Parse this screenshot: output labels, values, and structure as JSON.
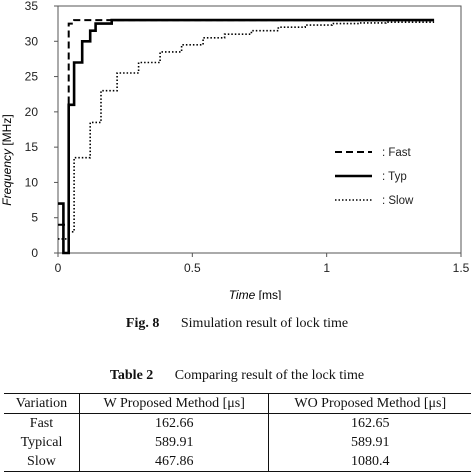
{
  "chart_data": {
    "type": "line",
    "xlabel_italic": "Time",
    "xlabel_unit": "[ms]",
    "ylabel_italic": "Frequency",
    "ylabel_unit": "[MHz]",
    "xlim": [
      0,
      1.5
    ],
    "ylim": [
      0,
      35
    ],
    "xticks": [
      "0",
      "0.5",
      "1",
      "1.5"
    ],
    "yticks": [
      "0",
      "5",
      "10",
      "15",
      "20",
      "25",
      "30",
      "35"
    ],
    "grid": false,
    "legend_position": "right",
    "series": [
      {
        "name": ": Fast",
        "style": "dashed",
        "x": [
          0,
          0.04,
          0.04,
          0.06,
          0.06,
          1.4
        ],
        "y": [
          4,
          4,
          32.5,
          32.5,
          33,
          33
        ]
      },
      {
        "name": ": Typ",
        "style": "solid",
        "x": [
          0,
          0.02,
          0.02,
          0.04,
          0.04,
          0.06,
          0.06,
          0.09,
          0.09,
          0.12,
          0.12,
          0.14,
          0.14,
          0.2,
          0.2,
          1.4
        ],
        "y": [
          7,
          7,
          0,
          0,
          21,
          21,
          27,
          27,
          30,
          30,
          31.5,
          31.5,
          32.5,
          32.5,
          33,
          33
        ]
      },
      {
        "name": ": Slow",
        "style": "dotted",
        "x": [
          0,
          0.04,
          0.04,
          0.06,
          0.06,
          0.12,
          0.12,
          0.16,
          0.16,
          0.22,
          0.22,
          0.3,
          0.3,
          0.38,
          0.38,
          0.46,
          0.46,
          0.54,
          0.54,
          0.62,
          0.62,
          0.72,
          0.72,
          0.82,
          0.82,
          0.92,
          0.92,
          1.02,
          1.02,
          1.12,
          1.12,
          1.22,
          1.22,
          1.32,
          1.32,
          1.4
        ],
        "y": [
          2,
          2,
          3,
          3,
          13.5,
          13.5,
          18.5,
          18.5,
          23,
          23,
          25.5,
          25.5,
          27,
          27,
          28.5,
          28.5,
          29.5,
          29.5,
          30.5,
          30.5,
          31,
          31,
          31.5,
          31.5,
          32,
          32,
          32.3,
          32.3,
          32.5,
          32.5,
          32.6,
          32.6,
          32.7,
          32.7,
          32.7,
          32.7
        ]
      }
    ]
  },
  "figure_caption": {
    "label": "Fig. 8",
    "text": "Simulation result of lock time"
  },
  "table": {
    "caption_label": "Table 2",
    "caption_text": "Comparing result of the lock time",
    "headers": [
      "Variation",
      "W Proposed Method [μs]",
      "WO Proposed Method [μs]"
    ],
    "rows": [
      [
        "Fast",
        "162.66",
        "162.65"
      ],
      [
        "Typical",
        "589.91",
        "589.91"
      ],
      [
        "Slow",
        "467.86",
        "1080.4"
      ]
    ]
  }
}
